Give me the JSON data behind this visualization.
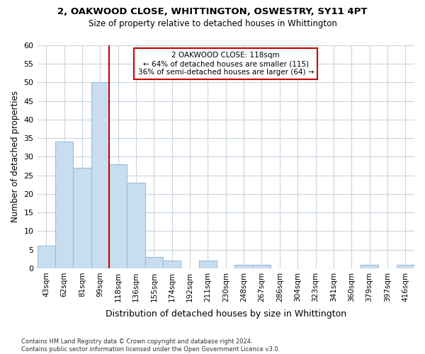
{
  "title1": "2, OAKWOOD CLOSE, WHITTINGTON, OSWESTRY, SY11 4PT",
  "title2": "Size of property relative to detached houses in Whittington",
  "xlabel": "Distribution of detached houses by size in Whittington",
  "ylabel": "Number of detached properties",
  "bar_labels": [
    "43sqm",
    "62sqm",
    "81sqm",
    "99sqm",
    "118sqm",
    "136sqm",
    "155sqm",
    "174sqm",
    "192sqm",
    "211sqm",
    "230sqm",
    "248sqm",
    "267sqm",
    "286sqm",
    "304sqm",
    "323sqm",
    "341sqm",
    "360sqm",
    "379sqm",
    "397sqm",
    "416sqm"
  ],
  "bar_values": [
    6,
    34,
    27,
    50,
    28,
    23,
    3,
    2,
    0,
    2,
    0,
    1,
    1,
    0,
    0,
    0,
    0,
    0,
    1,
    0,
    1
  ],
  "bar_color": "#c8ddf0",
  "bar_edge_color": "#9bbcd8",
  "vline_color": "#cc0000",
  "vline_x_index": 4,
  "annotation_lines": [
    "2 OAKWOOD CLOSE: 118sqm",
    "← 64% of detached houses are smaller (115)",
    "36% of semi-detached houses are larger (64) →"
  ],
  "ylim": [
    0,
    60
  ],
  "yticks": [
    0,
    5,
    10,
    15,
    20,
    25,
    30,
    35,
    40,
    45,
    50,
    55,
    60
  ],
  "footer_line1": "Contains HM Land Registry data © Crown copyright and database right 2024.",
  "footer_line2": "Contains public sector information licensed under the Open Government Licence v3.0.",
  "bg_color": "#ffffff",
  "grid_color": "#c8d4de"
}
